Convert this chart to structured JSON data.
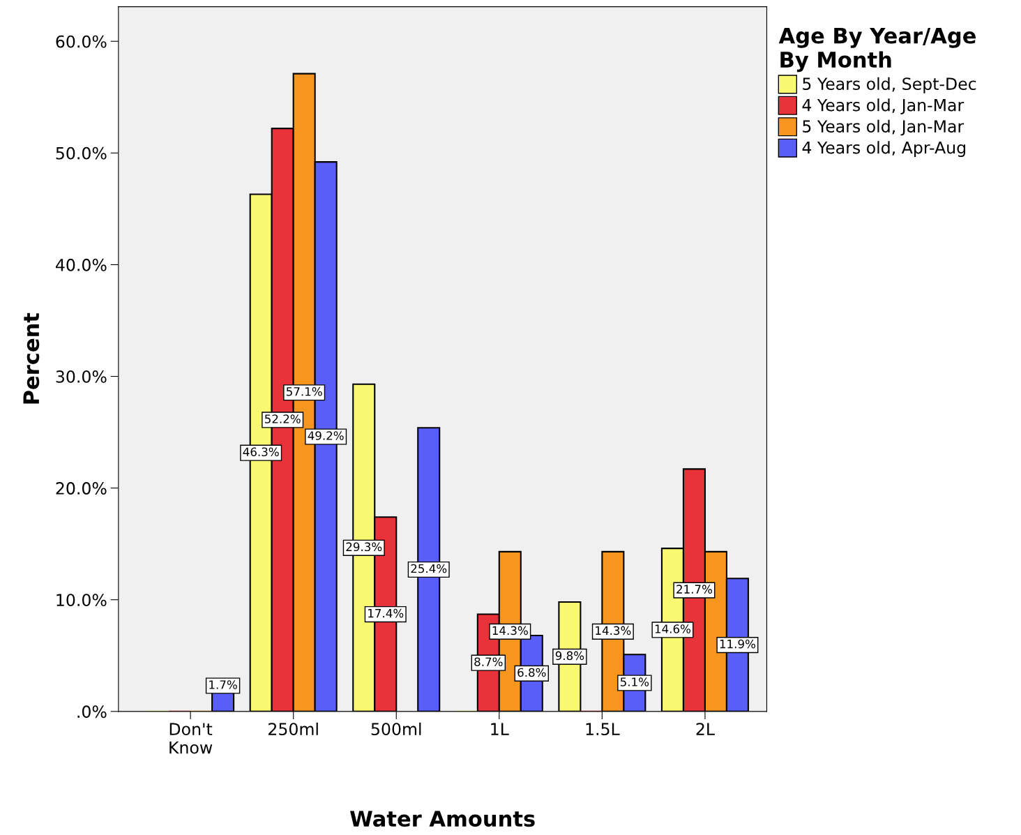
{
  "chart_data": {
    "type": "bar",
    "xlabel": "Water Amounts",
    "ylabel": "Percent",
    "legend_title": "Age By Year/Age\nBy Month",
    "categories": [
      "Don't\nKnow",
      "250ml",
      "500ml",
      "1L",
      "1.5L",
      "2L"
    ],
    "series": [
      {
        "name": "5 Years old, Sept-Dec",
        "color": "#f9f871",
        "values": [
          0,
          46.3,
          29.3,
          0,
          9.8,
          14.6
        ],
        "value_labels": [
          null,
          "46.3%",
          "29.3%",
          null,
          "9.8%",
          "14.6%"
        ]
      },
      {
        "name": "4 Years old, Jan-Mar",
        "color": "#e8333a",
        "values": [
          0,
          52.2,
          17.4,
          8.7,
          0,
          21.7
        ],
        "value_labels": [
          null,
          "52.2%",
          "17.4%",
          "8.7%",
          null,
          "21.7%"
        ]
      },
      {
        "name": "5 Years old, Jan-Mar",
        "color": "#f7961e",
        "values": [
          0,
          57.1,
          null,
          14.3,
          14.3,
          14.3
        ],
        "value_labels": [
          null,
          "57.1%",
          null,
          "14.3%",
          "14.3%",
          null
        ]
      },
      {
        "name": "4 Years old, Apr-Aug",
        "color": "#5a5ef9",
        "values": [
          1.7,
          49.2,
          25.4,
          6.8,
          5.1,
          11.9
        ],
        "value_labels": [
          "1.7%",
          "49.2%",
          "25.4%",
          "6.8%",
          "5.1%",
          "11.9%"
        ]
      }
    ],
    "ylim": [
      0,
      63.1
    ],
    "yticks": [
      {
        "value": 0,
        "label": ".0%"
      },
      {
        "value": 10,
        "label": "10.0%"
      },
      {
        "value": 20,
        "label": "20.0%"
      },
      {
        "value": 30,
        "label": "30.0%"
      },
      {
        "value": 40,
        "label": "40.0%"
      },
      {
        "value": 50,
        "label": "50.0%"
      },
      {
        "value": 60,
        "label": "60.0%"
      }
    ],
    "grid": false,
    "legend": "top right"
  }
}
